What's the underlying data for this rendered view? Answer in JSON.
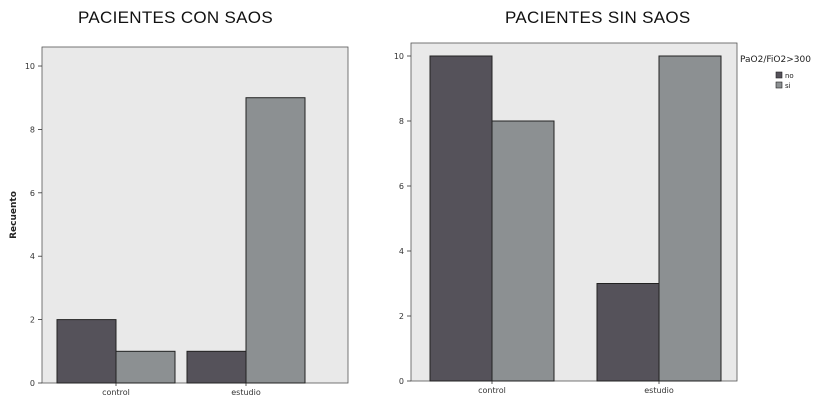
{
  "chart_data": [
    {
      "type": "bar",
      "title": "PACIENTES CON SAOS",
      "ylabel": "Recuento",
      "xlabel": "",
      "categories": [
        "control",
        "estudio"
      ],
      "yticks": [
        0,
        2,
        4,
        6,
        8,
        10
      ],
      "ylim": [
        0,
        10.6
      ],
      "grid": false,
      "series": [
        {
          "key": "no",
          "values": [
            2,
            1
          ],
          "color": "#55525a"
        },
        {
          "key": "si",
          "values": [
            1,
            9
          ],
          "color": "#8c9092"
        }
      ]
    },
    {
      "type": "bar",
      "title": "PACIENTES SIN SAOS",
      "ylabel": "",
      "xlabel": "",
      "categories": [
        "control",
        "estudio"
      ],
      "yticks": [
        0,
        2,
        4,
        6,
        8,
        10
      ],
      "ylim": [
        0,
        10.4
      ],
      "grid": false,
      "legend": {
        "title": "PaO2/FiO2>300",
        "placement": "top-right",
        "entries": [
          "no",
          "si"
        ]
      },
      "series": [
        {
          "name": "no",
          "values": [
            10,
            3
          ],
          "color": "#55525a"
        },
        {
          "name": "si",
          "values": [
            8,
            10
          ],
          "color": "#8c9092"
        }
      ]
    }
  ],
  "colors": {
    "plot_background": "#e9e9e9",
    "bar_outline": "#222222"
  }
}
